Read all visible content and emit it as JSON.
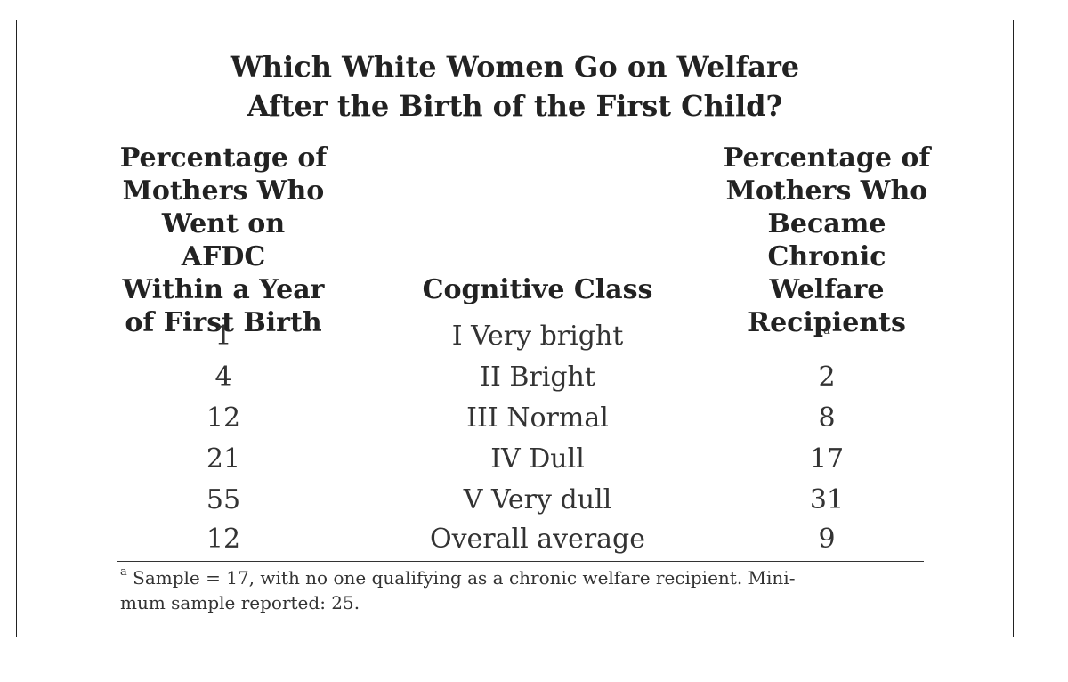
{
  "chart_data": {
    "type": "table",
    "title_lines": [
      "Which White Women Go on Welfare",
      "After the Birth of the First Child?"
    ],
    "columns": [
      {
        "key": "afdc",
        "header_lines": [
          "Percentage of",
          "Mothers Who",
          "Went on AFDC",
          "Within a Year",
          "of First Birth"
        ]
      },
      {
        "key": "class",
        "header_lines": [
          "Cognitive Class"
        ]
      },
      {
        "key": "chronic",
        "header_lines": [
          "Percentage of",
          "Mothers Who",
          "Became Chronic",
          "Welfare",
          "Recipients"
        ]
      }
    ],
    "rows": [
      {
        "afdc": "1",
        "class": "I Very bright",
        "chronic": "",
        "chronic_note": "a"
      },
      {
        "afdc": "4",
        "class": "II Bright",
        "chronic": "2",
        "chronic_note": ""
      },
      {
        "afdc": "12",
        "class": "III Normal",
        "chronic": "8",
        "chronic_note": ""
      },
      {
        "afdc": "21",
        "class": "IV Dull",
        "chronic": "17",
        "chronic_note": ""
      },
      {
        "afdc": "55",
        "class": "V Very dull",
        "chronic": "31",
        "chronic_note": ""
      },
      {
        "afdc": "12",
        "class": "Overall average",
        "chronic": "9",
        "chronic_note": ""
      }
    ],
    "footnote": {
      "marker": "a",
      "lines": [
        "Sample = 17, with no one qualifying as a chronic welfare recipient. Mini-",
        "mum sample reported: 25."
      ]
    }
  }
}
